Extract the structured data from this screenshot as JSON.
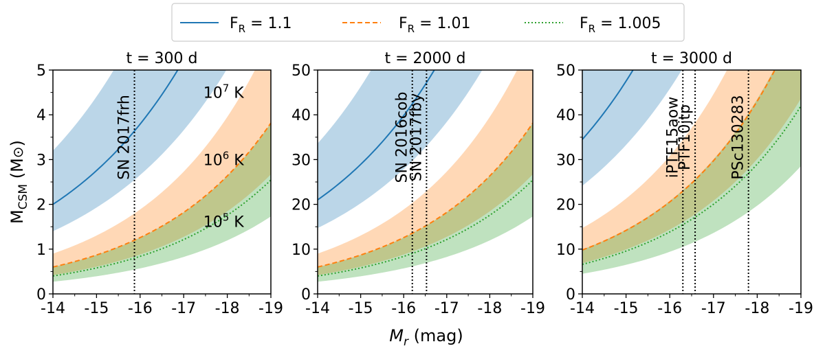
{
  "chart_data": {
    "type": "line",
    "legend": {
      "location": "top-center",
      "entries": [
        {
          "label_main": "F",
          "label_sub": "R",
          "label_rest": " = 1.1",
          "color": "#1f77b4",
          "style": "solid"
        },
        {
          "label_main": "F",
          "label_sub": "R",
          "label_rest": " = 1.01",
          "color": "#ff7f0e",
          "style": "dashed"
        },
        {
          "label_main": "F",
          "label_sub": "R",
          "label_rest": " = 1.005",
          "color": "#2ca02c",
          "style": "dotted"
        }
      ]
    },
    "xlabel_main": "M",
    "xlabel_sub": "r",
    "xlabel_rest": " (mag)",
    "ylabel_main": "M",
    "ylabel_sub": "CSM",
    "ylabel_rest": " (M",
    "ylabel_sun": "⊙",
    "ylabel_close": ")",
    "xlim": [
      -14,
      -19
    ],
    "xticks": [
      -14,
      -15,
      -16,
      -17,
      -18,
      -19
    ],
    "xtick_labels": [
      "-14",
      "-15",
      "-16",
      "-17",
      "-18",
      "-19"
    ],
    "panels": [
      {
        "title": "t = 300 d",
        "ylim": [
          0,
          5
        ],
        "yticks": [
          0,
          1,
          2,
          3,
          4,
          5
        ],
        "ytick_labels": [
          "0",
          "1",
          "2",
          "3",
          "4",
          "5"
        ],
        "series": [
          {
            "name": "F_R = 1.1",
            "color": "#1f77b4",
            "style": "solid",
            "m0": 2.0,
            "k": 0.32,
            "band_lo": 0.7,
            "band_hi": 1.6
          },
          {
            "name": "F_R = 1.01",
            "color": "#ff7f0e",
            "style": "dashed",
            "m0": 0.6,
            "k": 0.37,
            "band_lo": 0.7,
            "band_hi": 1.5
          },
          {
            "name": "F_R = 1.005",
            "color": "#2ca02c",
            "style": "dotted",
            "m0": 0.4,
            "k": 0.37,
            "band_lo": 0.68,
            "band_hi": 1.5
          }
        ],
        "vlines": [
          {
            "x": -15.87,
            "label": "SN 2017frh"
          }
        ],
        "temp_labels": [
          {
            "base": "10",
            "exp": "7",
            "unit": " K",
            "x": -17.45,
            "y": 4.5
          },
          {
            "base": "10",
            "exp": "6",
            "unit": " K",
            "x": -17.45,
            "y": 3.0
          },
          {
            "base": "10",
            "exp": "5",
            "unit": " K",
            "x": -17.45,
            "y": 1.62
          }
        ]
      },
      {
        "title": "t = 2000 d",
        "ylim": [
          0,
          50
        ],
        "yticks": [
          0,
          10,
          20,
          30,
          40,
          50
        ],
        "ytick_labels": [
          "0",
          "10",
          "20",
          "30",
          "40",
          "50"
        ],
        "series": [
          {
            "name": "F_R = 1.1",
            "color": "#1f77b4",
            "style": "solid",
            "m0": 21,
            "k": 0.32,
            "band_lo": 0.7,
            "band_hi": 1.6
          },
          {
            "name": "F_R = 1.01",
            "color": "#ff7f0e",
            "style": "dashed",
            "m0": 6.0,
            "k": 0.37,
            "band_lo": 0.7,
            "band_hi": 1.5
          },
          {
            "name": "F_R = 1.005",
            "color": "#2ca02c",
            "style": "dotted",
            "m0": 4.0,
            "k": 0.37,
            "band_lo": 0.68,
            "band_hi": 1.5
          }
        ],
        "vlines": [
          {
            "x": -16.2,
            "label": "SN 2016cob"
          },
          {
            "x": -16.53,
            "label": "SN 2017fby"
          }
        ],
        "temp_labels": []
      },
      {
        "title": "t = 3000 d",
        "ylim": [
          0,
          50
        ],
        "yticks": [
          0,
          10,
          20,
          30,
          40,
          50
        ],
        "ytick_labels": [
          "0",
          "10",
          "20",
          "30",
          "40",
          "50"
        ],
        "series": [
          {
            "name": "F_R = 1.1",
            "color": "#1f77b4",
            "style": "solid",
            "m0": 34.5,
            "k": 0.32,
            "band_lo": 0.7,
            "band_hi": 1.6
          },
          {
            "name": "F_R = 1.01",
            "color": "#ff7f0e",
            "style": "dashed",
            "m0": 9.8,
            "k": 0.37,
            "band_lo": 0.7,
            "band_hi": 1.5
          },
          {
            "name": "F_R = 1.005",
            "color": "#2ca02c",
            "style": "dotted",
            "m0": 6.6,
            "k": 0.37,
            "band_lo": 0.68,
            "band_hi": 1.5
          }
        ],
        "vlines": [
          {
            "x": -16.3,
            "label": "iPTF15aow"
          },
          {
            "x": -16.58,
            "label": "PTF10jtp"
          },
          {
            "x": -17.8,
            "label": "PSc130283"
          }
        ],
        "temp_labels": []
      }
    ]
  }
}
